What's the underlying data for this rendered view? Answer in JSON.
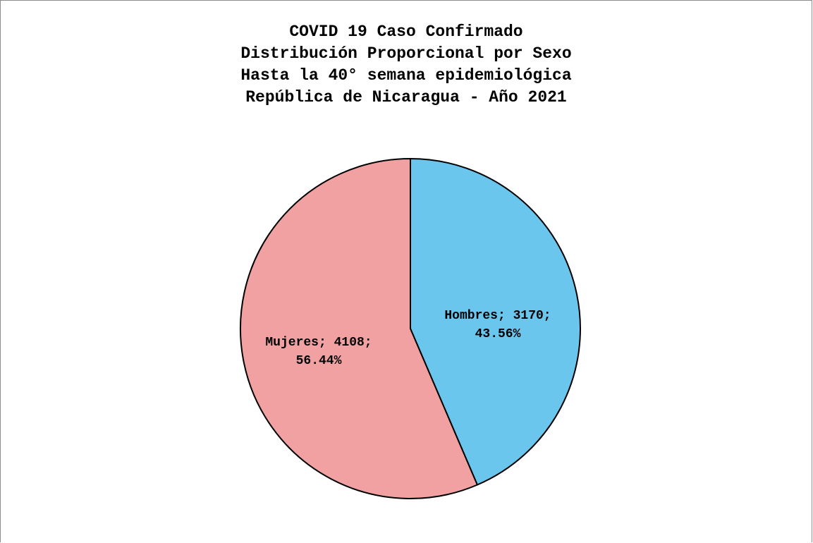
{
  "chart_data": {
    "type": "pie",
    "title_lines": [
      "COVID 19 Caso Confirmado",
      "Distribución Proporcional por Sexo",
      "Hasta la 40° semana epidemiológica",
      "República de Nicaragua - Año 2021"
    ],
    "slices": [
      {
        "label": "Hombres",
        "value": 3170,
        "percent": "43.56%",
        "label_line1": "Hombres; 3170;",
        "label_line2": "43.56%",
        "color": "#6bc6ee"
      },
      {
        "label": "Mujeres",
        "value": 4108,
        "percent": "56.44%",
        "label_line1": "Mujeres; 4108;",
        "label_line2": "56.44%",
        "color": "#f1a1a1"
      }
    ],
    "start_angle": "12 o'clock",
    "direction": "clockwise",
    "legend": "none",
    "border_color": "#000000"
  }
}
